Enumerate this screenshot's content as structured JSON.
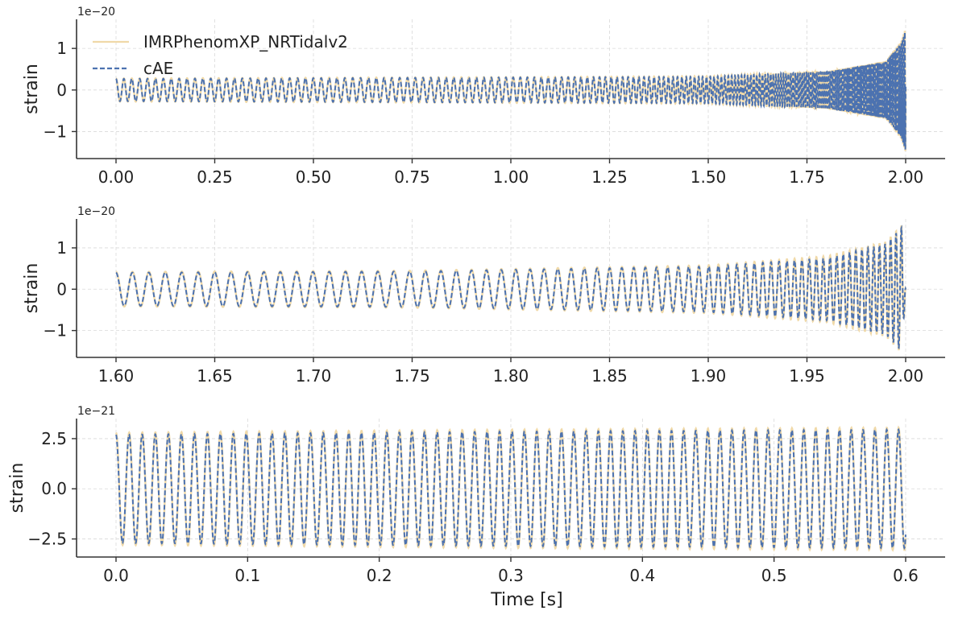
{
  "chart_data": [
    {
      "type": "line",
      "offset_text": "1e−20",
      "ylabel": "strain",
      "xlabel": "",
      "xlim": [
        -0.1,
        2.1
      ],
      "ylim": [
        -1.65,
        1.7
      ],
      "xticks": [
        0.0,
        0.25,
        0.5,
        0.75,
        1.0,
        1.25,
        1.5,
        1.75,
        2.0
      ],
      "xtick_labels": [
        "0.00",
        "0.25",
        "0.50",
        "0.75",
        "1.00",
        "1.25",
        "1.50",
        "1.75",
        "2.00"
      ],
      "yticks": [
        -1,
        0,
        1
      ],
      "ytick_labels": [
        "−1",
        "0",
        "1"
      ],
      "grid": true,
      "legend": {
        "position": "upper-left",
        "entries": [
          "IMRPhenomXP_NRTidalv2",
          "cAE"
        ]
      },
      "series": [
        {
          "name": "IMRPhenomXP_NRTidalv2",
          "style": "solid",
          "color": "#f0d9a8",
          "x_range": [
            0.0,
            2.0
          ],
          "envelope_amplitude": [
            [
              0.0,
              0.28
            ],
            [
              1.5,
              0.33
            ],
            [
              1.8,
              0.45
            ],
            [
              1.95,
              0.7
            ],
            [
              1.99,
              1.2
            ],
            [
              2.0,
              1.55
            ]
          ]
        },
        {
          "name": "cAE",
          "style": "dashed",
          "color": "#4c72b0",
          "x_range": [
            0.0,
            2.0
          ],
          "envelope_amplitude": [
            [
              0.0,
              0.27
            ],
            [
              1.5,
              0.32
            ],
            [
              1.8,
              0.44
            ],
            [
              1.95,
              0.68
            ],
            [
              1.99,
              1.15
            ],
            [
              2.0,
              1.5
            ]
          ]
        }
      ]
    },
    {
      "type": "line",
      "offset_text": "1e−20",
      "ylabel": "strain",
      "xlabel": "",
      "xlim": [
        1.58,
        2.02
      ],
      "ylim": [
        -1.65,
        1.7
      ],
      "xticks": [
        1.6,
        1.65,
        1.7,
        1.75,
        1.8,
        1.85,
        1.9,
        1.95,
        2.0
      ],
      "xtick_labels": [
        "1.60",
        "1.65",
        "1.70",
        "1.75",
        "1.80",
        "1.85",
        "1.90",
        "1.95",
        "2.00"
      ],
      "yticks": [
        -1,
        0,
        1
      ],
      "ytick_labels": [
        "−1",
        "0",
        "1"
      ],
      "grid": true,
      "series": [
        {
          "name": "IMRPhenomXP_NRTidalv2",
          "style": "solid",
          "color": "#f0d9a8",
          "x_range": [
            1.6,
            2.0
          ],
          "envelope_amplitude": [
            [
              1.6,
              0.42
            ],
            [
              1.75,
              0.45
            ],
            [
              1.9,
              0.58
            ],
            [
              1.96,
              0.8
            ],
            [
              1.99,
              1.15
            ],
            [
              1.998,
              1.55
            ],
            [
              2.0,
              0.0
            ]
          ]
        },
        {
          "name": "cAE",
          "style": "dashed",
          "color": "#4c72b0",
          "x_range": [
            1.6,
            2.0
          ],
          "envelope_amplitude": [
            [
              1.6,
              0.4
            ],
            [
              1.75,
              0.43
            ],
            [
              1.9,
              0.55
            ],
            [
              1.96,
              0.75
            ],
            [
              1.99,
              1.1
            ],
            [
              1.998,
              1.5
            ],
            [
              2.0,
              0.0
            ]
          ]
        }
      ]
    },
    {
      "type": "line",
      "offset_text": "1e−21",
      "ylabel": "strain",
      "xlabel": "Time [s]",
      "xlim": [
        -0.03,
        0.63
      ],
      "ylim": [
        -3.4,
        3.5
      ],
      "xticks": [
        0.0,
        0.1,
        0.2,
        0.3,
        0.4,
        0.5,
        0.6
      ],
      "xtick_labels": [
        "0.0",
        "0.1",
        "0.2",
        "0.3",
        "0.4",
        "0.5",
        "0.6"
      ],
      "yticks": [
        -2.5,
        0.0,
        2.5
      ],
      "ytick_labels": [
        "−2.5",
        "0.0",
        "2.5"
      ],
      "grid": true,
      "series": [
        {
          "name": "IMRPhenomXP_NRTidalv2",
          "style": "solid",
          "color": "#f0d9a8",
          "x_range": [
            0.0,
            0.6
          ],
          "envelope_amplitude": [
            [
              0.0,
              2.8
            ],
            [
              0.3,
              2.95
            ],
            [
              0.6,
              3.05
            ]
          ]
        },
        {
          "name": "cAE",
          "style": "dashed",
          "color": "#4c72b0",
          "x_range": [
            0.0,
            0.6
          ],
          "envelope_amplitude": [
            [
              0.0,
              2.7
            ],
            [
              0.3,
              2.85
            ],
            [
              0.6,
              2.95
            ]
          ]
        }
      ]
    }
  ]
}
